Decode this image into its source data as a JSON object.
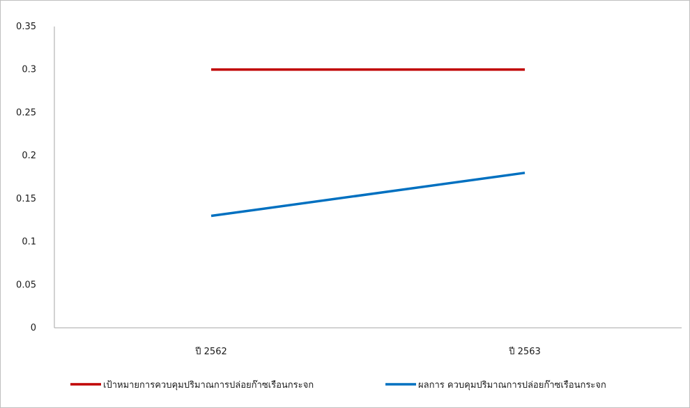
{
  "chart_data": {
    "type": "line",
    "categories": [
      "ปี 2562",
      "ปี 2563"
    ],
    "ylim": [
      0,
      0.35
    ],
    "yticks": [
      "0",
      "0.05",
      "0.1",
      "0.15",
      "0.2",
      "0.25",
      "0.3",
      "0.35"
    ],
    "ytick_values": [
      0,
      0.05,
      0.1,
      0.15,
      0.2,
      0.25,
      0.3,
      0.35
    ],
    "grid": false,
    "legend_position": "bottom",
    "series": [
      {
        "name": "เป้าหมายการควบคุมปริมาณการปล่อยก๊าซเรือนกระจก",
        "color": "#c00000",
        "values": [
          0.3,
          0.3
        ]
      },
      {
        "name": "ผลการ ควบคุมปริมาณการปล่อยก๊าซเรือนกระจก",
        "color": "#0070c0",
        "values": [
          0.13,
          0.18
        ]
      }
    ]
  }
}
